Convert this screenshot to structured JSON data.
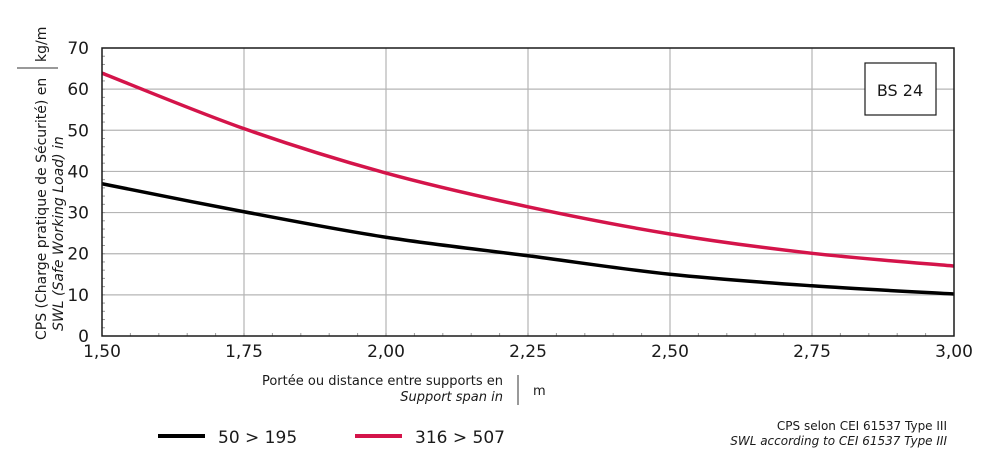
{
  "chart_data": {
    "type": "line",
    "title": "",
    "badge": "BS 24",
    "x": [
      1.5,
      1.75,
      2.0,
      2.25,
      2.5,
      2.75,
      3.0
    ],
    "x_tick_labels": [
      "1,50",
      "1,75",
      "2,00",
      "2,25",
      "2,50",
      "2,75",
      "3,00"
    ],
    "y_ticks": [
      0,
      10,
      20,
      30,
      40,
      50,
      60,
      70
    ],
    "xlim": [
      1.5,
      3.0
    ],
    "ylim": [
      0,
      70
    ],
    "grid": true,
    "ylabel_fr": "CPS (Charge pratique de Sécurité) en",
    "ylabel_en": "SWL (Safe Working Load) in",
    "yunit": "kg/m",
    "xlabel_fr": "Portée ou distance entre supports en",
    "xlabel_en": "Support span in",
    "xunit": "m",
    "legend_placement": "bottom-left",
    "series": [
      {
        "name": "50 > 195",
        "color": "#000000",
        "values": [
          37,
          30.2,
          24,
          19.5,
          15,
          12.2,
          10.2
        ]
      },
      {
        "name": "316 > 507",
        "color": "#d4144a",
        "values": [
          63.9,
          50.4,
          39.6,
          31.4,
          24.8,
          20.1,
          17
        ]
      }
    ],
    "note_fr": "CPS selon CEI 61537 Type III",
    "note_en": "SWL according to CEI 61537 Type III"
  }
}
